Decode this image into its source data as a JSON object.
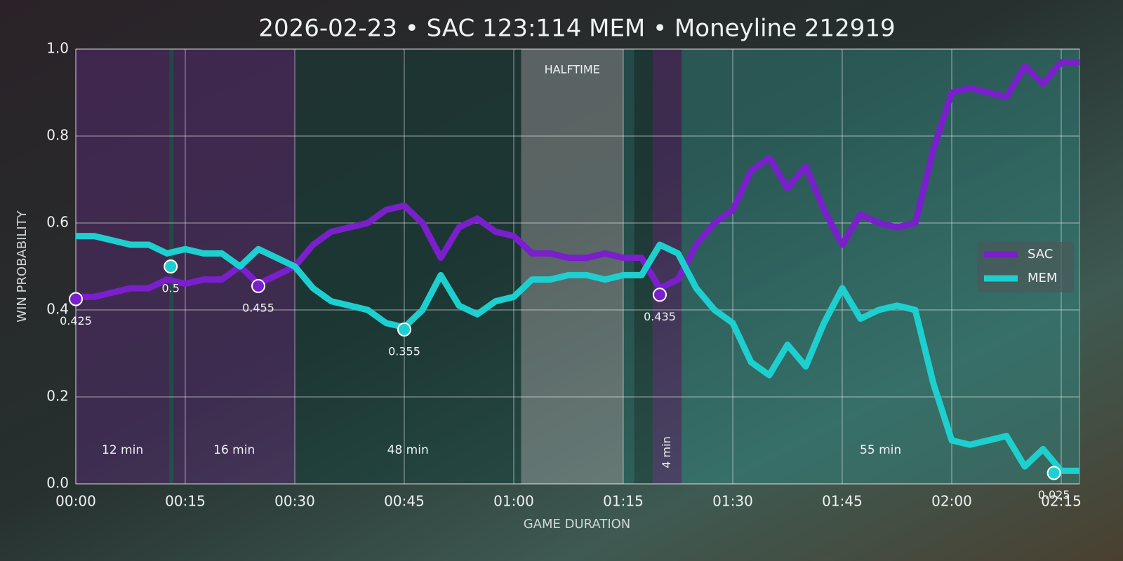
{
  "chart_data": {
    "type": "line",
    "title": "2026-02-23 • SAC 123:114 MEM • Moneyline 212919",
    "x_label": "GAME DURATION",
    "y_label": "WIN PROBABILITY",
    "xlim": [
      0,
      137.5
    ],
    "ylim": [
      0,
      1
    ],
    "xticks": [
      {
        "value": 0,
        "label": "00:00"
      },
      {
        "value": 15,
        "label": "00:15"
      },
      {
        "value": 30,
        "label": "00:30"
      },
      {
        "value": 45,
        "label": "00:45"
      },
      {
        "value": 60,
        "label": "01:00"
      },
      {
        "value": 75,
        "label": "01:15"
      },
      {
        "value": 90,
        "label": "01:30"
      },
      {
        "value": 105,
        "label": "01:45"
      },
      {
        "value": 120,
        "label": "02:00"
      },
      {
        "value": 135,
        "label": "02:15"
      }
    ],
    "yticks": [
      {
        "value": 0,
        "label": "0.0"
      },
      0.2,
      0.4,
      0.6,
      0.8,
      {
        "value": 1,
        "label": "1.0"
      }
    ],
    "grid": true,
    "legend": "right",
    "regions": [
      {
        "start": 0,
        "end": 12.8,
        "label": "12 min",
        "color": "#5a2a7a"
      },
      {
        "start": 12.8,
        "end": 13.4,
        "color": "#1f6f6a"
      },
      {
        "start": 13.4,
        "end": 30,
        "label": "16 min",
        "color": "#5a2a7a"
      },
      {
        "start": 30,
        "end": 61,
        "label": "48 min",
        "color": "#12403c"
      },
      {
        "start": 61,
        "end": 75,
        "label": "HALFTIME",
        "color": "#9aa6a6"
      },
      {
        "start": 75,
        "end": 76.5,
        "color": "#1f6f6a"
      },
      {
        "start": 76.5,
        "end": 79,
        "color": "#12403c"
      },
      {
        "start": 79,
        "end": 83,
        "label": "4 min",
        "color": "#5a2a7a"
      },
      {
        "start": 83,
        "end": 137.5,
        "label": "55 min",
        "color": "#2e8a86"
      }
    ],
    "x": [
      0,
      2.5,
      5,
      7.5,
      10,
      12.5,
      15,
      17.5,
      20,
      22.5,
      25,
      27.5,
      30,
      32.5,
      35,
      37.5,
      40,
      42.5,
      45,
      47.5,
      50,
      52.5,
      55,
      57.5,
      60,
      62.5,
      65,
      67.5,
      70,
      72.5,
      75,
      77.5,
      80,
      82.5,
      85,
      87.5,
      90,
      92.5,
      95,
      97.5,
      100,
      102.5,
      105,
      107.5,
      110,
      112.5,
      115,
      117.5,
      120,
      122.5,
      125,
      127.5,
      130,
      132.5,
      135,
      137.5
    ],
    "series": [
      {
        "name": "SAC",
        "color": "#7a1fcc",
        "values": [
          0.43,
          0.43,
          0.44,
          0.45,
          0.45,
          0.47,
          0.46,
          0.47,
          0.47,
          0.5,
          0.46,
          0.48,
          0.5,
          0.55,
          0.58,
          0.59,
          0.6,
          0.63,
          0.64,
          0.6,
          0.52,
          0.59,
          0.61,
          0.58,
          0.57,
          0.53,
          0.53,
          0.52,
          0.52,
          0.53,
          0.52,
          0.52,
          0.45,
          0.47,
          0.55,
          0.6,
          0.63,
          0.72,
          0.75,
          0.68,
          0.73,
          0.63,
          0.55,
          0.62,
          0.6,
          0.59,
          0.6,
          0.77,
          0.9,
          0.91,
          0.9,
          0.89,
          0.96,
          0.92,
          0.97,
          0.97
        ]
      },
      {
        "name": "MEM",
        "color": "#1ecfcf",
        "values": [
          0.57,
          0.57,
          0.56,
          0.55,
          0.55,
          0.53,
          0.54,
          0.53,
          0.53,
          0.5,
          0.54,
          0.52,
          0.5,
          0.45,
          0.42,
          0.41,
          0.4,
          0.37,
          0.36,
          0.4,
          0.48,
          0.41,
          0.39,
          0.42,
          0.43,
          0.47,
          0.47,
          0.48,
          0.48,
          0.47,
          0.48,
          0.48,
          0.55,
          0.53,
          0.45,
          0.4,
          0.37,
          0.28,
          0.25,
          0.32,
          0.27,
          0.37,
          0.45,
          0.38,
          0.4,
          0.41,
          0.4,
          0.23,
          0.1,
          0.09,
          0.1,
          0.11,
          0.04,
          0.08,
          0.03,
          0.03
        ]
      }
    ],
    "annotations": [
      {
        "x": 0,
        "y": 0.425,
        "series": 0
      },
      {
        "x": 13,
        "y": 0.5,
        "series": 1
      },
      {
        "x": 25,
        "y": 0.455,
        "series": 0
      },
      {
        "x": 45,
        "y": 0.355,
        "series": 1
      },
      {
        "x": 80,
        "y": 0.435,
        "series": 0
      },
      {
        "x": 134,
        "y": 0.025,
        "series": 1
      }
    ]
  }
}
